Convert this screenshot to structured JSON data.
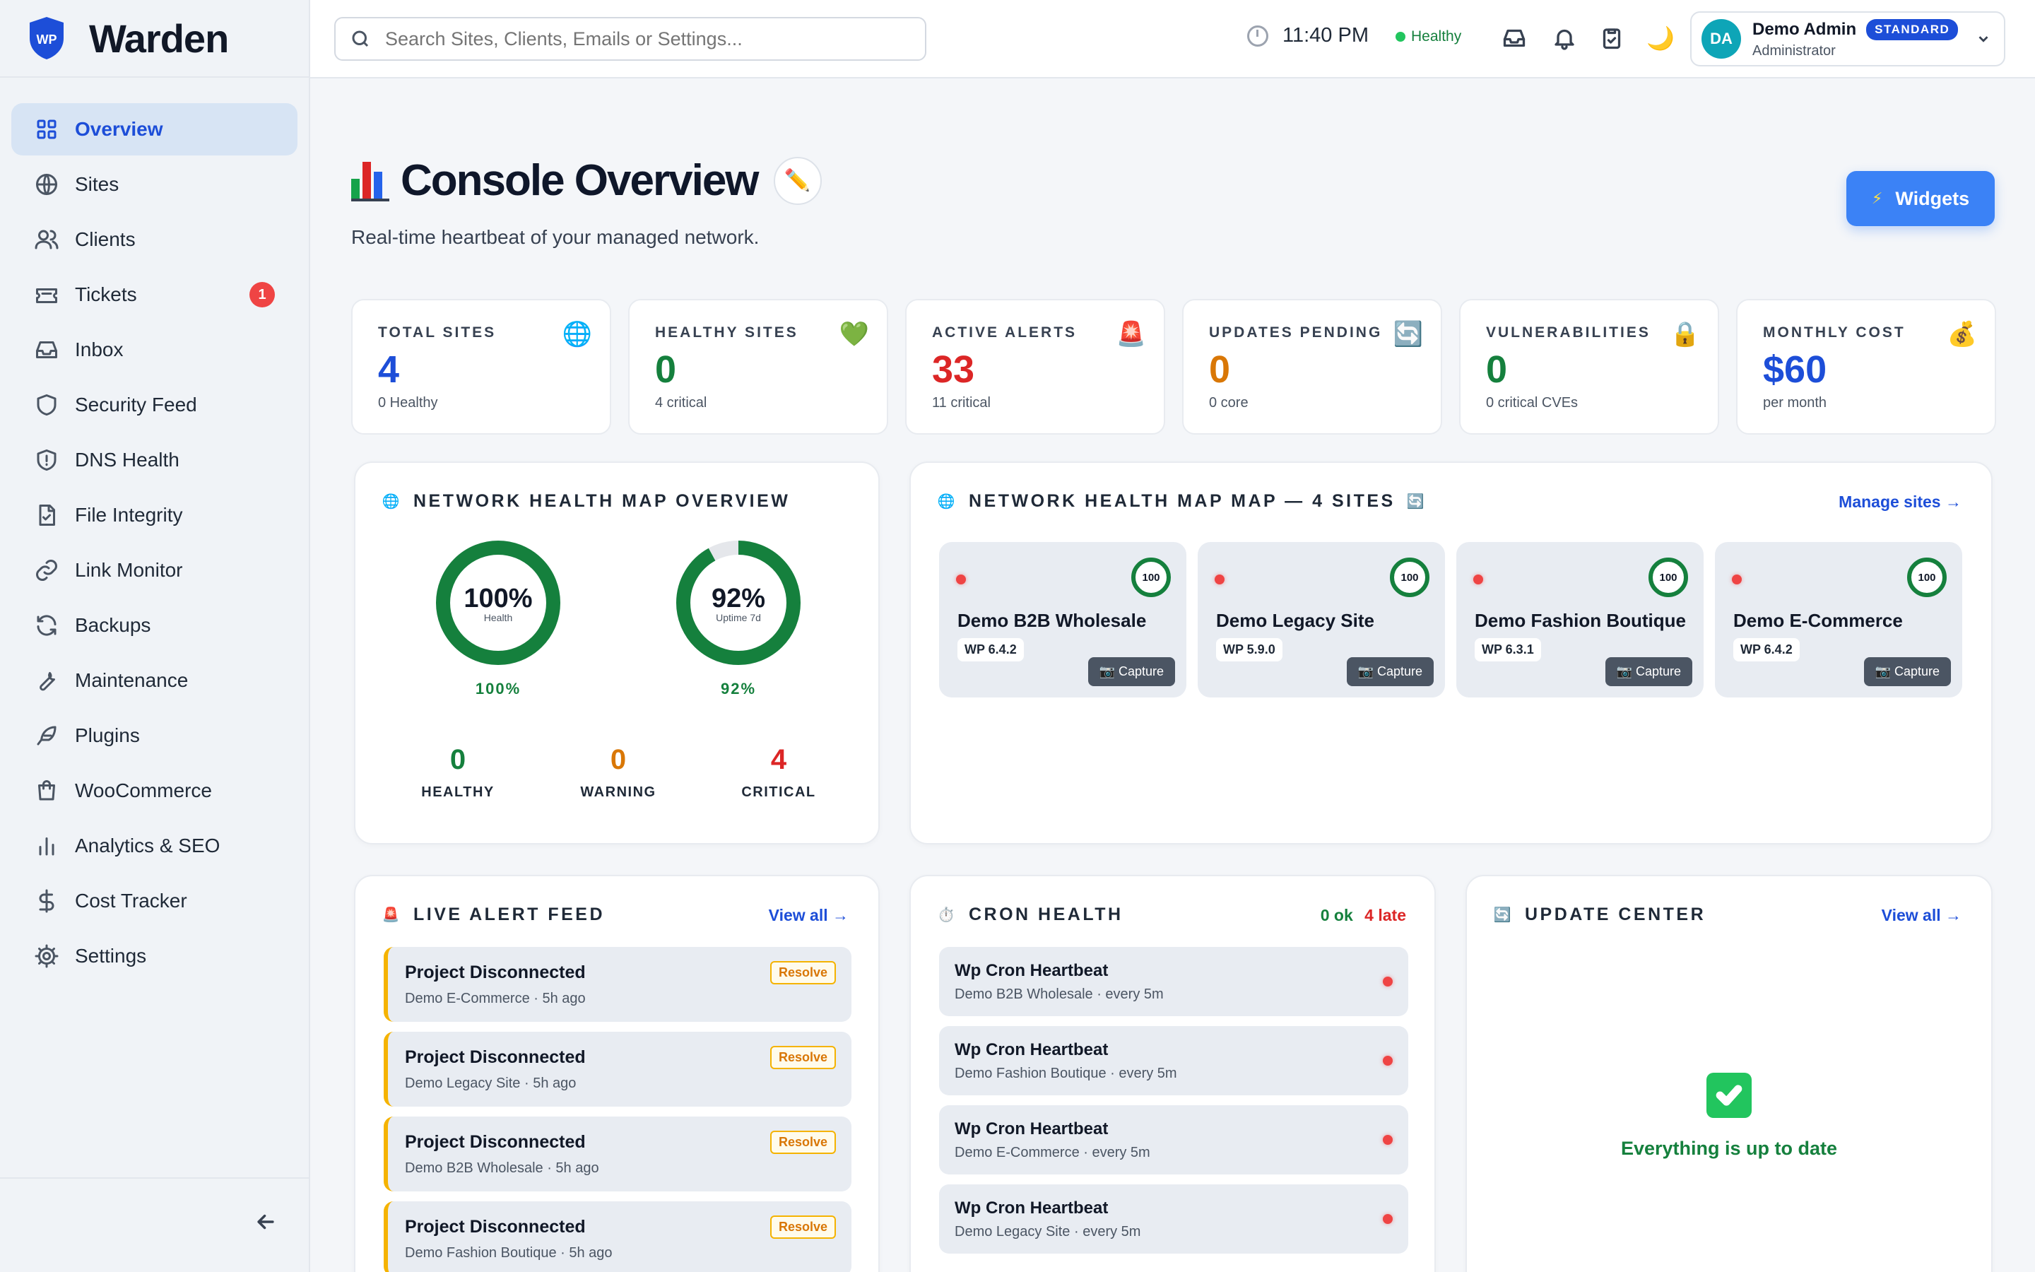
{
  "app": {
    "name": "Warden",
    "logo_text": "WP"
  },
  "sidebar": {
    "items": [
      {
        "label": "Overview",
        "icon": "grid-icon",
        "active": true
      },
      {
        "label": "Sites",
        "icon": "globe-icon"
      },
      {
        "label": "Clients",
        "icon": "users-icon"
      },
      {
        "label": "Tickets",
        "icon": "ticket-icon",
        "badge": "1"
      },
      {
        "label": "Inbox",
        "icon": "inbox-icon"
      },
      {
        "label": "Security Feed",
        "icon": "shield-icon"
      },
      {
        "label": "DNS Health",
        "icon": "shield-alert-icon"
      },
      {
        "label": "File Integrity",
        "icon": "file-check-icon"
      },
      {
        "label": "Link Monitor",
        "icon": "link-icon"
      },
      {
        "label": "Backups",
        "icon": "refresh-icon"
      },
      {
        "label": "Maintenance",
        "icon": "wrench-icon"
      },
      {
        "label": "Plugins",
        "icon": "feather-icon"
      },
      {
        "label": "WooCommerce",
        "icon": "shopping-bag-icon"
      },
      {
        "label": "Analytics & SEO",
        "icon": "bar-chart-icon"
      },
      {
        "label": "Cost Tracker",
        "icon": "dollar-icon"
      },
      {
        "label": "Settings",
        "icon": "gear-icon"
      }
    ]
  },
  "topbar": {
    "search_placeholder": "Search Sites, Clients, Emails or Settings...",
    "time": "11:40 PM",
    "status": "Healthy",
    "user": {
      "initials": "DA",
      "name": "Demo Admin",
      "plan": "STANDARD",
      "role": "Administrator"
    }
  },
  "header": {
    "title": "Console Overview",
    "subtitle": "Real-time heartbeat of your managed network.",
    "widgets_label": "Widgets"
  },
  "stats": [
    {
      "label": "TOTAL SITES",
      "value": "4",
      "sub": "0 Healthy",
      "color": "#1d4ed8",
      "icon": "🌐"
    },
    {
      "label": "HEALTHY SITES",
      "value": "0",
      "sub": "4 critical",
      "color": "#15803d",
      "icon": "💚"
    },
    {
      "label": "ACTIVE ALERTS",
      "value": "33",
      "sub": "11 critical",
      "color": "#dc2626",
      "icon": "🚨"
    },
    {
      "label": "UPDATES PENDING",
      "value": "0",
      "sub": "0 core",
      "color": "#d97706",
      "icon": "🔄"
    },
    {
      "label": "VULNERABILITIES",
      "value": "0",
      "sub": "0 critical CVEs",
      "color": "#15803d",
      "icon": "🔒"
    },
    {
      "label": "MONTHLY COST",
      "value": "$60",
      "sub": "per month",
      "color": "#1d4ed8",
      "icon": "💰"
    }
  ],
  "health_overview": {
    "title": "NETWORK HEALTH MAP OVERVIEW",
    "gauges": [
      {
        "value_text": "100%",
        "caption": "Health",
        "pct_text": "100%",
        "fraction": 1.0
      },
      {
        "value_text": "92%",
        "caption": "Uptime 7d",
        "pct_text": "92%",
        "fraction": 0.92
      }
    ],
    "counts": [
      {
        "value": "0",
        "label": "HEALTHY",
        "color": "#15803d"
      },
      {
        "value": "0",
        "label": "WARNING",
        "color": "#d97706"
      },
      {
        "value": "4",
        "label": "CRITICAL",
        "color": "#dc2626"
      }
    ]
  },
  "sites_map": {
    "title": "NETWORK HEALTH MAP MAP — 4 SITES",
    "link": "Manage sites →",
    "capture_label": "📷 Capture",
    "sites": [
      {
        "name": "Demo B2B Wholesale",
        "version": "WP 6.4.2",
        "score": "100"
      },
      {
        "name": "Demo Legacy Site",
        "version": "WP 5.9.0",
        "score": "100"
      },
      {
        "name": "Demo Fashion Boutique",
        "version": "WP 6.3.1",
        "score": "100"
      },
      {
        "name": "Demo E-Commerce",
        "version": "WP 6.4.2",
        "score": "100"
      }
    ]
  },
  "alerts": {
    "title": "LIVE ALERT FEED",
    "link": "View all →",
    "resolve_label": "Resolve",
    "items": [
      {
        "title": "Project Disconnected",
        "sub": "Demo E-Commerce · 5h ago"
      },
      {
        "title": "Project Disconnected",
        "sub": "Demo Legacy Site · 5h ago"
      },
      {
        "title": "Project Disconnected",
        "sub": "Demo B2B Wholesale · 5h ago"
      },
      {
        "title": "Project Disconnected",
        "sub": "Demo Fashion Boutique · 5h ago"
      }
    ]
  },
  "cron": {
    "title": "CRON HEALTH",
    "ok": "0 ok",
    "late": "4 late",
    "items": [
      {
        "title": "Wp Cron Heartbeat",
        "sub": "Demo B2B Wholesale · every 5m"
      },
      {
        "title": "Wp Cron Heartbeat",
        "sub": "Demo Fashion Boutique · every 5m"
      },
      {
        "title": "Wp Cron Heartbeat",
        "sub": "Demo E-Commerce · every 5m"
      },
      {
        "title": "Wp Cron Heartbeat",
        "sub": "Demo Legacy Site · every 5m"
      }
    ]
  },
  "updates": {
    "title": "UPDATE CENTER",
    "link": "View all →",
    "message": "Everything is up to date"
  }
}
